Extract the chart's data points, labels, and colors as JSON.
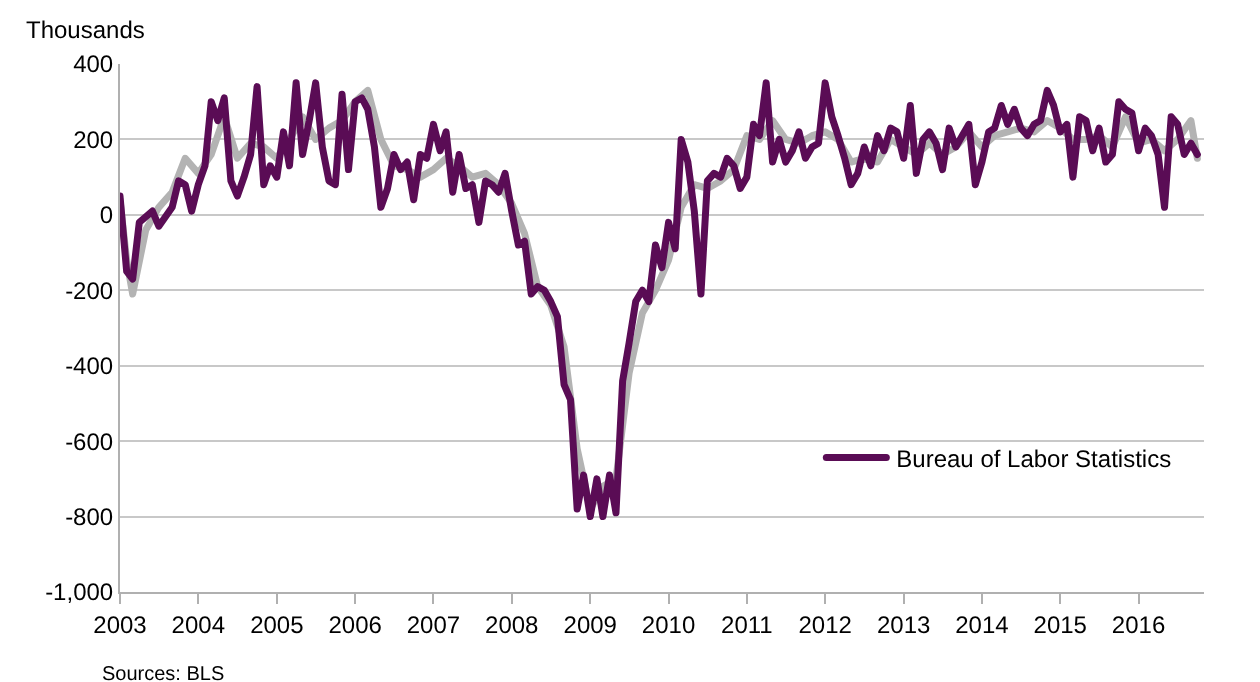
{
  "chart_data": {
    "type": "line",
    "ylabel": "Thousands",
    "annotations": [
      "Sources: BLS"
    ],
    "xlim": [
      "2003-01-01",
      "2016-11-01"
    ],
    "xticks": [
      {
        "value": "2003-01-01",
        "label": "2003"
      },
      {
        "value": "2004-01-01",
        "label": "2004"
      },
      {
        "value": "2005-01-01",
        "label": "2005"
      },
      {
        "value": "2006-01-01",
        "label": "2006"
      },
      {
        "value": "2007-01-01",
        "label": "2007"
      },
      {
        "value": "2008-01-01",
        "label": "2008"
      },
      {
        "value": "2009-01-01",
        "label": "2009"
      },
      {
        "value": "2010-01-01",
        "label": "2010"
      },
      {
        "value": "2011-01-01",
        "label": "2011"
      },
      {
        "value": "2012-01-01",
        "label": "2012"
      },
      {
        "value": "2013-01-01",
        "label": "2013"
      },
      {
        "value": "2014-01-01",
        "label": "2014"
      },
      {
        "value": "2015-01-01",
        "label": "2015"
      },
      {
        "value": "2016-01-01",
        "label": "2016"
      }
    ],
    "ylim": [
      -1000,
      400
    ],
    "yticks": [
      {
        "value": -1000,
        "label": "-1,000"
      },
      -800,
      -600,
      -400,
      -200,
      0,
      200,
      400
    ],
    "grid": "y",
    "legend": "bottom right",
    "line_style": "solid",
    "marker": "none",
    "series": [
      {
        "color": "#b3b3b3",
        "x": [
          "2003-01",
          "2003-02",
          "2003-03",
          "2003-05",
          "2003-07",
          "2003-09",
          "2003-11",
          "2004-01",
          "2004-03",
          "2004-05",
          "2004-07",
          "2004-09",
          "2004-11",
          "2005-01",
          "2005-03",
          "2005-05",
          "2005-07",
          "2005-09",
          "2005-11",
          "2006-01",
          "2006-03",
          "2006-05",
          "2006-07",
          "2006-09",
          "2006-11",
          "2007-01",
          "2007-03",
          "2007-05",
          "2007-07",
          "2007-09",
          "2007-11",
          "2008-01",
          "2008-03",
          "2008-05",
          "2008-07",
          "2008-09",
          "2008-11",
          "2009-01",
          "2009-03",
          "2009-05",
          "2009-07",
          "2009-09",
          "2009-11",
          "2010-01",
          "2010-03",
          "2010-05",
          "2010-07",
          "2010-09",
          "2010-11",
          "2011-01",
          "2011-03",
          "2011-05",
          "2011-07",
          "2011-09",
          "2011-11",
          "2012-01",
          "2012-03",
          "2012-05",
          "2012-07",
          "2012-09",
          "2012-11",
          "2013-01",
          "2013-03",
          "2013-05",
          "2013-07",
          "2013-09",
          "2013-11",
          "2014-01",
          "2014-03",
          "2014-05",
          "2014-07",
          "2014-09",
          "2014-11",
          "2015-01",
          "2015-03",
          "2015-05",
          "2015-07",
          "2015-09",
          "2015-11",
          "2016-01",
          "2016-03",
          "2016-05",
          "2016-07",
          "2016-09",
          "2016-10"
        ],
        "values": [
          40,
          -120,
          -210,
          -40,
          20,
          60,
          150,
          110,
          160,
          260,
          150,
          190,
          180,
          150,
          200,
          260,
          200,
          230,
          250,
          300,
          330,
          200,
          130,
          120,
          100,
          120,
          150,
          130,
          100,
          110,
          80,
          30,
          -50,
          -190,
          -240,
          -350,
          -620,
          -780,
          -720,
          -700,
          -420,
          -260,
          -200,
          -120,
          20,
          80,
          70,
          90,
          120,
          210,
          200,
          250,
          200,
          190,
          210,
          220,
          200,
          140,
          150,
          140,
          200,
          180,
          160,
          190,
          160,
          180,
          220,
          180,
          210,
          220,
          230,
          220,
          250,
          230,
          200,
          200,
          210,
          180,
          260,
          190,
          200,
          170,
          200,
          250,
          150
        ]
      },
      {
        "name": "Bureau of Labor Statistics",
        "color": "#5a0c55",
        "x": [
          "2003-01",
          "2003-02",
          "2003-03",
          "2003-04",
          "2003-06",
          "2003-07",
          "2003-09",
          "2003-10",
          "2003-11",
          "2003-12",
          "2004-01",
          "2004-02",
          "2004-03",
          "2004-04",
          "2004-05",
          "2004-06",
          "2004-07",
          "2004-08",
          "2004-09",
          "2004-10",
          "2004-11",
          "2004-12",
          "2005-01",
          "2005-02",
          "2005-03",
          "2005-04",
          "2005-05",
          "2005-06",
          "2005-07",
          "2005-08",
          "2005-09",
          "2005-10",
          "2005-11",
          "2005-12",
          "2006-01",
          "2006-02",
          "2006-03",
          "2006-04",
          "2006-05",
          "2006-06",
          "2006-07",
          "2006-08",
          "2006-09",
          "2006-10",
          "2006-11",
          "2006-12",
          "2007-01",
          "2007-02",
          "2007-03",
          "2007-04",
          "2007-05",
          "2007-06",
          "2007-07",
          "2007-08",
          "2007-09",
          "2007-10",
          "2007-11",
          "2007-12",
          "2008-01",
          "2008-02",
          "2008-03",
          "2008-04",
          "2008-05",
          "2008-06",
          "2008-07",
          "2008-08",
          "2008-09",
          "2008-10",
          "2008-11",
          "2008-12",
          "2009-01",
          "2009-02",
          "2009-03",
          "2009-04",
          "2009-05",
          "2009-06",
          "2009-07",
          "2009-08",
          "2009-09",
          "2009-10",
          "2009-11",
          "2009-12",
          "2010-01",
          "2010-02",
          "2010-03",
          "2010-04",
          "2010-05",
          "2010-06",
          "2010-07",
          "2010-08",
          "2010-09",
          "2010-10",
          "2010-11",
          "2010-12",
          "2011-01",
          "2011-02",
          "2011-03",
          "2011-04",
          "2011-05",
          "2011-06",
          "2011-07",
          "2011-08",
          "2011-09",
          "2011-10",
          "2011-11",
          "2011-12",
          "2012-01",
          "2012-02",
          "2012-03",
          "2012-04",
          "2012-05",
          "2012-06",
          "2012-07",
          "2012-08",
          "2012-09",
          "2012-10",
          "2012-11",
          "2012-12",
          "2013-01",
          "2013-02",
          "2013-03",
          "2013-04",
          "2013-05",
          "2013-06",
          "2013-07",
          "2013-08",
          "2013-09",
          "2013-10",
          "2013-11",
          "2013-12",
          "2014-01",
          "2014-02",
          "2014-03",
          "2014-04",
          "2014-05",
          "2014-06",
          "2014-07",
          "2014-08",
          "2014-09",
          "2014-10",
          "2014-11",
          "2014-12",
          "2015-01",
          "2015-02",
          "2015-03",
          "2015-04",
          "2015-05",
          "2015-06",
          "2015-07",
          "2015-08",
          "2015-09",
          "2015-10",
          "2015-11",
          "2015-12",
          "2016-01",
          "2016-02",
          "2016-03",
          "2016-04",
          "2016-05",
          "2016-06",
          "2016-07",
          "2016-08",
          "2016-09",
          "2016-10"
        ],
        "values": [
          50,
          -150,
          -170,
          -20,
          10,
          -30,
          20,
          90,
          80,
          10,
          80,
          130,
          300,
          250,
          310,
          90,
          50,
          100,
          160,
          340,
          80,
          130,
          100,
          220,
          130,
          350,
          160,
          250,
          350,
          180,
          90,
          80,
          320,
          120,
          300,
          310,
          280,
          180,
          20,
          70,
          160,
          120,
          140,
          40,
          160,
          150,
          240,
          170,
          220,
          60,
          160,
          70,
          80,
          -20,
          90,
          80,
          60,
          110,
          10,
          -80,
          -70,
          -210,
          -190,
          -200,
          -230,
          -270,
          -450,
          -490,
          -780,
          -690,
          -800,
          -700,
          -800,
          -690,
          -790,
          -440,
          -340,
          -230,
          -200,
          -230,
          -80,
          -140,
          -20,
          -90,
          200,
          140,
          10,
          -210,
          90,
          110,
          100,
          150,
          130,
          70,
          100,
          240,
          210,
          350,
          140,
          200,
          140,
          170,
          220,
          150,
          180,
          190,
          350,
          260,
          210,
          150,
          80,
          110,
          180,
          130,
          210,
          170,
          230,
          220,
          150,
          290,
          110,
          200,
          220,
          190,
          120,
          230,
          180,
          210,
          240,
          80,
          140,
          220,
          230,
          290,
          240,
          280,
          230,
          210,
          240,
          250,
          330,
          290,
          220,
          240,
          100,
          260,
          250,
          170,
          230,
          140,
          160,
          300,
          280,
          270,
          170,
          230,
          210,
          160,
          20,
          260,
          240,
          160,
          190,
          160
        ]
      }
    ]
  }
}
